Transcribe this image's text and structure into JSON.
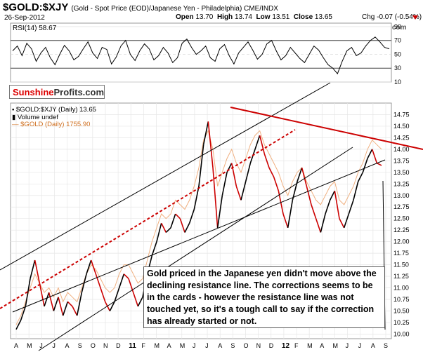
{
  "header": {
    "symbol": "$GOLD:$XJY",
    "subtitle": "(Gold - Spot Price (EOD)/Japanese Yen - Philadelphia) CME/INDX",
    "date": "26-Sep-2012",
    "open_label": "Open",
    "open": "13.70",
    "high_label": "High",
    "high": "13.74",
    "low_label": "Low",
    "low": "13.51",
    "close_label": "Close",
    "close": "13.65",
    "chg": "Chg -0.07 (-0.54%)",
    "credit": "© StockCharts.com"
  },
  "colors": {
    "price": "#000000",
    "down": "#cc0000",
    "gold": "#f0b080",
    "resistance": "#cc0000",
    "trend": "#000000"
  },
  "logo": {
    "part1": "Sunshine",
    "part2": "Profits.com"
  },
  "legend": {
    "price": "$GOLD:$XJY (Daily) 13.65",
    "volume": "Volume undef",
    "gold": "$GOLD (Daily) 1755.90"
  },
  "annotation": "Gold priced in the Japanese yen didn't move above the declining resistance line. The corrections seems to be in the cards - however the resistance line was not touched yet, so it's a tough call to say if the correction has already started or not.",
  "chart_data": [
    {
      "type": "line",
      "title": "RSI(14) 58.67",
      "y_ticks": [
        10,
        30,
        50,
        70,
        90
      ],
      "ylim": [
        10,
        95
      ],
      "series": [
        {
          "name": "RSI(14)",
          "values": [
            55,
            62,
            48,
            66,
            58,
            40,
            52,
            60,
            45,
            35,
            50,
            63,
            55,
            42,
            47,
            58,
            68,
            52,
            44,
            60,
            57,
            36,
            46,
            62,
            70,
            50,
            41,
            55,
            65,
            58,
            42,
            48,
            60,
            52,
            38,
            45,
            66,
            72,
            60,
            50,
            55,
            62,
            45,
            40,
            58,
            64,
            48,
            36,
            52,
            60,
            68,
            56,
            43,
            50,
            65,
            70,
            55,
            42,
            48,
            60,
            52,
            44,
            38,
            50,
            62,
            56,
            45,
            35,
            30,
            22,
            40,
            55,
            60,
            48,
            52,
            62,
            70,
            75,
            68,
            60,
            58
          ]
        }
      ]
    },
    {
      "type": "line",
      "title": "$GOLD:$XJY (Daily) 13.65",
      "x_ticks": [
        "A",
        "M",
        "J",
        "J",
        "A",
        "S",
        "O",
        "N",
        "D",
        "11",
        "F",
        "M",
        "A",
        "M",
        "J",
        "J",
        "A",
        "S",
        "O",
        "N",
        "D",
        "12",
        "F",
        "M",
        "A",
        "M",
        "J",
        "J",
        "A",
        "S"
      ],
      "y_ticks": [
        10.0,
        10.25,
        10.5,
        10.75,
        11.0,
        11.25,
        11.5,
        11.75,
        12.0,
        12.25,
        12.5,
        12.75,
        13.0,
        13.25,
        13.5,
        13.75,
        14.0,
        14.25,
        14.5,
        14.75
      ],
      "ylim": [
        9.9,
        15.0
      ],
      "series": [
        {
          "name": "$GOLD:$XJY (Daily)",
          "values": [
            10.1,
            10.3,
            10.6,
            11.2,
            11.6,
            11.1,
            10.6,
            10.9,
            10.5,
            10.8,
            10.4,
            10.7,
            10.6,
            10.4,
            10.9,
            11.3,
            11.6,
            11.3,
            11.0,
            10.7,
            10.5,
            10.7,
            11.0,
            11.3,
            11.2,
            10.9,
            10.6,
            10.8,
            11.3,
            11.7,
            12.0,
            12.4,
            12.2,
            12.3,
            12.6,
            12.5,
            12.2,
            12.4,
            12.7,
            13.2,
            14.1,
            14.6,
            13.6,
            12.3,
            13.0,
            13.5,
            13.7,
            13.2,
            12.9,
            13.3,
            13.7,
            14.0,
            14.3,
            13.9,
            13.6,
            13.4,
            13.1,
            12.6,
            12.3,
            12.9,
            13.3,
            13.6,
            13.2,
            12.8,
            12.5,
            12.2,
            12.6,
            12.9,
            13.1,
            12.5,
            12.3,
            12.6,
            12.9,
            13.3,
            13.5,
            13.8,
            14.0,
            13.7,
            13.65
          ]
        },
        {
          "name": "$GOLD (Daily)",
          "values": [
            10.2,
            10.4,
            10.7,
            11.0,
            11.3,
            11.1,
            10.9,
            11.0,
            10.8,
            11.0,
            10.7,
            10.9,
            10.8,
            10.7,
            11.0,
            11.3,
            11.5,
            11.4,
            11.2,
            11.0,
            10.9,
            11.0,
            11.3,
            11.5,
            11.5,
            11.3,
            11.1,
            11.2,
            11.6,
            12.0,
            12.3,
            12.6,
            12.5,
            12.6,
            12.9,
            12.8,
            12.7,
            12.9,
            13.2,
            13.6,
            14.2,
            14.4,
            14.0,
            13.2,
            13.5,
            13.8,
            14.0,
            13.7,
            13.5,
            13.8,
            14.1,
            14.3,
            14.4,
            14.1,
            13.9,
            13.7,
            13.5,
            13.2,
            13.0,
            13.3,
            13.5,
            13.6,
            13.3,
            13.1,
            12.9,
            12.8,
            13.0,
            13.2,
            13.3,
            12.9,
            12.8,
            13.0,
            13.2,
            13.5,
            13.7,
            14.0,
            14.2,
            14.1,
            14.0
          ]
        }
      ]
    }
  ]
}
